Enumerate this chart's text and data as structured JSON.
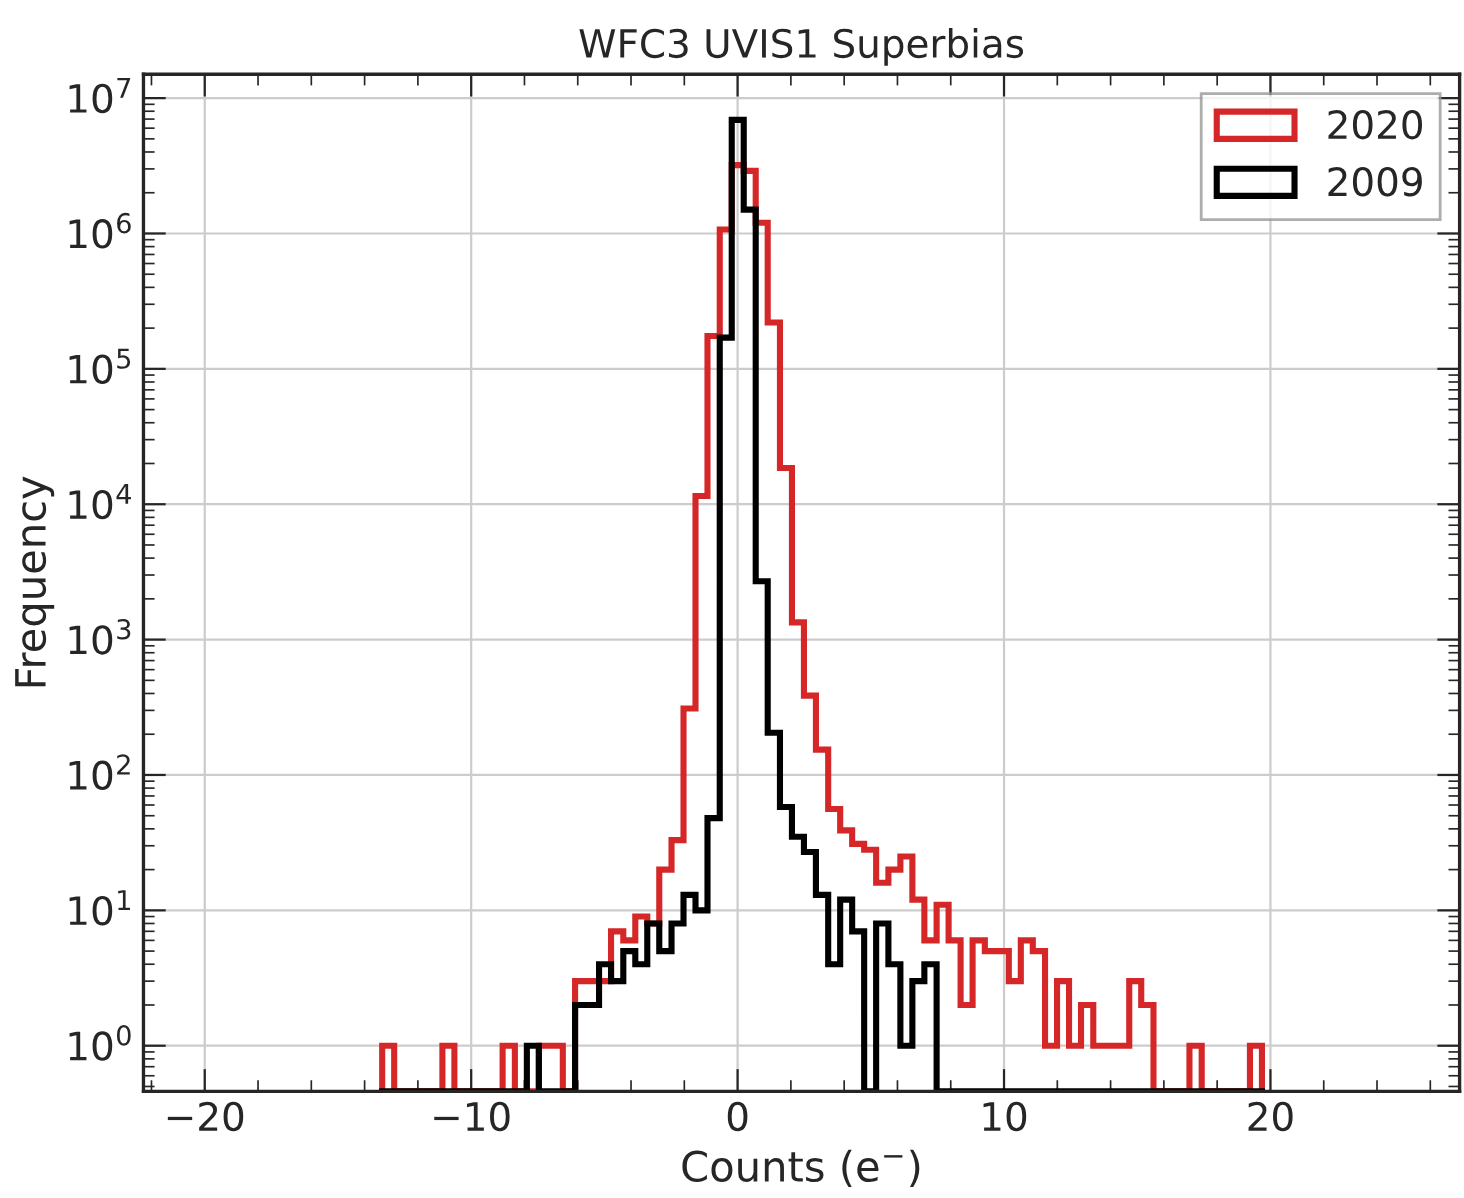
{
  "chart_data": {
    "type": "histogram",
    "title": "WFC3 UVIS1 Superbias",
    "xlabel": "Counts (e$^{−}$)",
    "ylabel": "Frequency",
    "bins": [
      -13.34,
      -12.89,
      -12.44,
      -11.98,
      -11.53,
      -11.08,
      -10.63,
      -10.17,
      -9.72,
      -9.27,
      -8.82,
      -8.36,
      -7.91,
      -7.46,
      -7.01,
      -6.56,
      -6.1,
      -5.65,
      -5.2,
      -4.75,
      -4.29,
      -3.84,
      -3.39,
      -2.94,
      -2.48,
      -2.03,
      -1.58,
      -1.13,
      -0.67,
      -0.22,
      0.23,
      0.68,
      1.13,
      1.59,
      2.04,
      2.49,
      2.94,
      3.4,
      3.85,
      4.3,
      4.75,
      5.2,
      5.66,
      6.11,
      6.56,
      7.01,
      7.47,
      7.92,
      8.37,
      8.82,
      9.28,
      9.73,
      10.18,
      10.63,
      11.08,
      11.54,
      11.99,
      12.44,
      12.89,
      13.35,
      13.8,
      14.25,
      14.7,
      15.15,
      15.61,
      16.06,
      16.51,
      16.96,
      17.42,
      17.87,
      18.32,
      18.77,
      19.23,
      19.68
    ],
    "series": [
      {
        "name": "2020",
        "color": "#d62728",
        "values": [
          1,
          null,
          null,
          null,
          null,
          1,
          null,
          null,
          null,
          null,
          1,
          null,
          null,
          1,
          1,
          null,
          3,
          3,
          3,
          7,
          6,
          9,
          8,
          20,
          33,
          310,
          11500,
          175000,
          1070000,
          3200000,
          2900000,
          1200000,
          220000,
          18500,
          1340,
          386,
          154,
          56,
          39,
          31,
          28,
          16,
          20,
          25,
          12,
          6,
          11,
          6,
          2,
          6,
          5,
          5,
          3,
          6,
          5,
          1,
          3,
          1,
          2,
          1,
          1,
          1,
          3,
          2,
          null,
          null,
          null,
          1,
          null,
          null,
          null,
          null,
          1
        ]
      },
      {
        "name": "2009",
        "color": "#000000",
        "values": [
          null,
          null,
          null,
          null,
          null,
          null,
          null,
          null,
          null,
          null,
          null,
          null,
          1,
          null,
          null,
          null,
          2,
          2,
          4,
          3,
          5,
          4,
          8,
          5,
          8,
          13,
          10,
          48,
          170000,
          6900000,
          1500000,
          2700,
          205,
          58,
          35,
          27,
          13,
          4,
          12,
          7,
          null,
          8,
          4,
          1,
          3,
          4,
          null,
          null,
          null,
          null,
          null,
          null,
          null,
          null,
          null,
          null,
          null,
          null,
          null,
          null,
          null,
          null,
          null,
          null,
          null,
          null,
          null,
          null,
          null,
          null,
          null,
          null,
          null
        ]
      }
    ],
    "xlim": [
      -22.3,
      27.1
    ],
    "xticks": [
      -20,
      -10,
      0,
      10,
      20
    ],
    "log": "y",
    "ylim": [
      0.46,
      15000000
    ],
    "yticks": [
      {
        "value": 1,
        "label": "10$^{0}$"
      },
      {
        "value": 10,
        "label": "10$^{1}$"
      },
      {
        "value": 100,
        "label": "10$^{2}$"
      },
      {
        "value": 1000,
        "label": "10$^{3}$"
      },
      {
        "value": 10000,
        "label": "10$^{4}$"
      },
      {
        "value": 100000,
        "label": "10$^{5}$"
      },
      {
        "value": 1000000,
        "label": "10$^{6}$"
      },
      {
        "value": 10000000,
        "label": "10$^{7}$"
      }
    ],
    "grid": true,
    "legend": "top right"
  }
}
